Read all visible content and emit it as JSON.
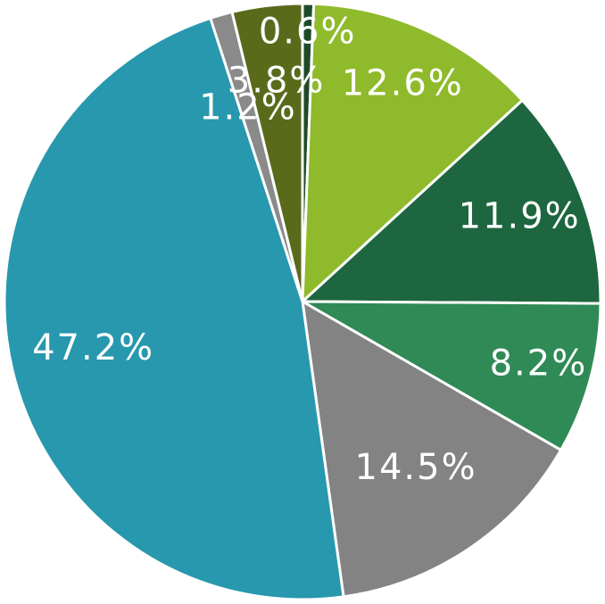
{
  "chart_data": {
    "type": "pie",
    "categories": [
      null,
      null,
      null,
      null,
      null,
      null,
      null,
      null
    ],
    "values": [
      0.6,
      12.6,
      11.9,
      8.2,
      14.5,
      47.2,
      1.2,
      3.8
    ],
    "value_labels": [
      "0.6%",
      "12.6%",
      "11.9%",
      "8.2%",
      "14.5%",
      "47.2%",
      "1.2%",
      "3.8%"
    ],
    "colors": [
      "#1f4a2a",
      "#8fba2c",
      "#1d6640",
      "#2f8a56",
      "#838383",
      "#2798ad",
      "#8a8a8a",
      "#5a6a1b"
    ]
  }
}
